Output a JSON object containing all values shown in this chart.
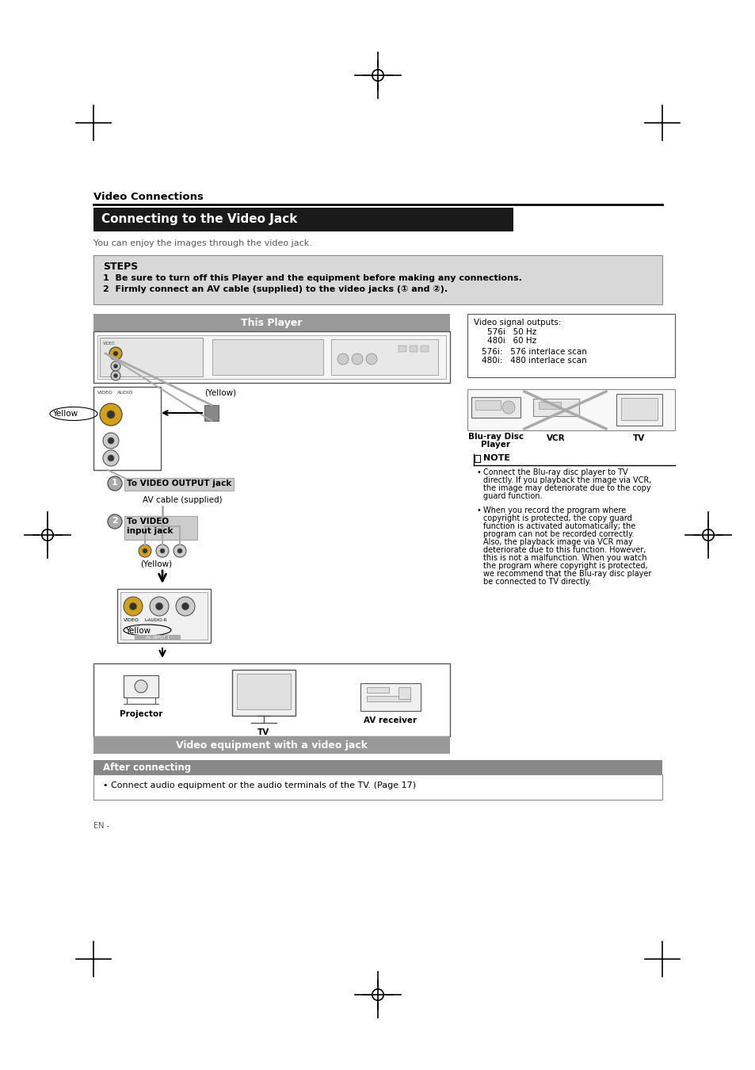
{
  "bg_color": "#ffffff",
  "section_title": "Video Connections",
  "main_title": "Connecting to the Video Jack",
  "main_title_bg": "#1a1a1a",
  "main_title_color": "#ffffff",
  "subtitle_text": "You can enjoy the images through the video jack.",
  "steps_title": "STEPS",
  "step1": "1  Be sure to turn off this Player and the equipment before making any connections.",
  "step2": "2  Firmly connect an AV cable (supplied) to the video jacks (① and ②).",
  "this_player_text": "This Player",
  "video_signal_box_title": "Video signal outputs:",
  "video_signal_lines": [
    "576i   50 Hz",
    "480i   60 Hz",
    "",
    "576i:   576 interlace scan",
    "480i:   480 interlace scan"
  ],
  "label_yellow": "Yellow",
  "label_yellow2": "(Yellow)",
  "label_yellow3": "(Yellow)",
  "label_yellow4": "Yellow",
  "label_to_video_output": "To VIDEO OUTPUT jack",
  "label_av_cable": "AV cable (supplied)",
  "label_to_video_input_title": "To VIDEO",
  "label_to_video_input_sub": "input jack",
  "label_projector": "Projector",
  "label_tv": "TV",
  "label_av_receiver": "AV receiver",
  "video_equip_text": "Video equipment with a video jack",
  "note_title": "NOTE",
  "note_bullet1_lines": [
    "Connect the Blu-ray disc player to TV",
    "directly. If you playback the image via VCR,",
    "the image may deteriorate due to the copy",
    "guard function."
  ],
  "note_bullet2_lines": [
    "When you record the program where",
    "copyright is protected, the copy guard",
    "function is activated automatically; the",
    "program can not be recorded correctly.",
    "Also, the playback image via VCR may",
    "deteriorate due to this function. However,",
    "this is not a malfunction. When you watch",
    "the program where copyright is protected,",
    "we recommend that the Blu-ray disc player",
    "be connected to TV directly."
  ],
  "bluray_label_line1": "Blu-ray Disc",
  "bluray_label_line2": "Player",
  "vcr_label": "VCR",
  "tv_label_right": "TV",
  "after_connecting_title": "After connecting",
  "after_connecting_text": "• Connect audio equipment or the audio terminals of the TV. (Page 17)",
  "en_label": "EN -"
}
